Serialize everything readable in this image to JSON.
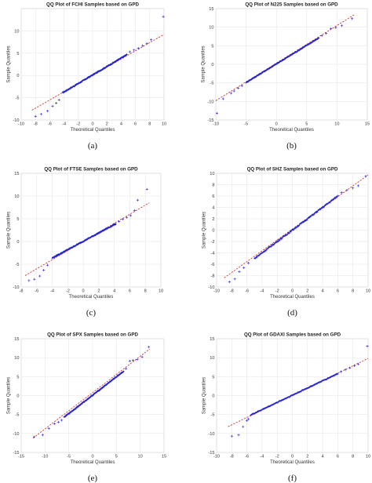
{
  "chart_data": [
    {
      "type": "scatter",
      "title": "QQ Plot of FCHI Samples based on GPD",
      "xlabel": "Theoretical Quantiles",
      "ylabel": "Sample Quantiles",
      "caption": "(a)",
      "xlim": [
        -10,
        10
      ],
      "ylim": [
        -10,
        15
      ],
      "xticks": [
        -10,
        -8,
        -6,
        -4,
        -2,
        0,
        2,
        4,
        6,
        8,
        10
      ],
      "yticks": [
        -10,
        -5,
        0,
        5,
        10
      ],
      "grid": true,
      "reference_line": {
        "x": [
          -8.5,
          10
        ],
        "y": [
          -7.8,
          9.2
        ]
      },
      "bulk": {
        "x_start": -4.2,
        "x_end": 4.8,
        "slope": 0.95,
        "intercept": 0.1
      },
      "tail_points": [
        [
          -8,
          -9.2
        ],
        [
          -7.2,
          -8.7
        ],
        [
          -6.3,
          -8
        ],
        [
          -5.6,
          -6.9
        ],
        [
          -5.1,
          -6.2
        ],
        [
          -4.7,
          -5.5
        ],
        [
          5.2,
          5.3
        ],
        [
          5.8,
          5.7
        ],
        [
          6.4,
          6.1
        ],
        [
          7,
          6.7
        ],
        [
          7.6,
          7.2
        ],
        [
          8.2,
          8
        ],
        [
          9.9,
          13.2
        ]
      ]
    },
    {
      "type": "scatter",
      "title": "QQ Plot of N225 Samples based on GPD",
      "xlabel": "Theoretical Quantiles",
      "ylabel": "Sample Quantiles",
      "caption": "(b)",
      "xlim": [
        -10,
        15
      ],
      "ylim": [
        -15,
        15
      ],
      "xticks": [
        -10,
        -5,
        0,
        5,
        10,
        15
      ],
      "yticks": [
        -15,
        -10,
        -5,
        0,
        5,
        10,
        15
      ],
      "grid": true,
      "reference_line": {
        "x": [
          -10,
          13
        ],
        "y": [
          -9.8,
          13.5
        ]
      },
      "bulk": {
        "x_start": -5,
        "x_end": 7,
        "slope": 1.0,
        "intercept": 0.1
      },
      "tail_points": [
        [
          -9.8,
          -13.2
        ],
        [
          -8.8,
          -9.3
        ],
        [
          -7.5,
          -7.8
        ],
        [
          -7,
          -7.2
        ],
        [
          -6.3,
          -6.4
        ],
        [
          -5.7,
          -5.8
        ],
        [
          7.5,
          7.7
        ],
        [
          8.2,
          8.3
        ],
        [
          9,
          9.6
        ],
        [
          9.8,
          9.9
        ],
        [
          10.8,
          10.4
        ],
        [
          12.5,
          12.3
        ]
      ]
    },
    {
      "type": "scatter",
      "title": "QQ Plot of FTSE Samples based on GPD",
      "xlabel": "Theoretical Quantiles",
      "ylabel": "Sample Quantiles",
      "caption": "(c)",
      "xlim": [
        -8,
        10
      ],
      "ylim": [
        -10,
        15
      ],
      "xticks": [
        -8,
        -6,
        -4,
        -2,
        0,
        2,
        4,
        6,
        8,
        10
      ],
      "yticks": [
        -10,
        -5,
        0,
        5,
        10,
        15
      ],
      "grid": true,
      "reference_line": {
        "x": [
          -7.5,
          8.5
        ],
        "y": [
          -7.5,
          8.5
        ]
      },
      "bulk": {
        "x_start": -4,
        "x_end": 4.2,
        "slope": 0.92,
        "intercept": 0.05
      },
      "tail_points": [
        [
          -7,
          -8.6
        ],
        [
          -6.3,
          -8.3
        ],
        [
          -5.6,
          -7.6
        ],
        [
          -5.1,
          -6.3
        ],
        [
          -4.6,
          -5.2
        ],
        [
          4.6,
          4.4
        ],
        [
          5.1,
          4.9
        ],
        [
          5.6,
          5.3
        ],
        [
          6.1,
          5.7
        ],
        [
          6.6,
          6.8
        ],
        [
          7,
          9.1
        ],
        [
          8.2,
          11.5
        ]
      ]
    },
    {
      "type": "scatter",
      "title": "QQ Plot of SHZ Samples based on GPD",
      "xlabel": "Theoretical Quantiles",
      "ylabel": "Sample Quantiles",
      "caption": "(d)",
      "xlim": [
        -10,
        10
      ],
      "ylim": [
        -10,
        10
      ],
      "xticks": [
        -10,
        -8,
        -6,
        -4,
        -2,
        0,
        2,
        4,
        6,
        8,
        10
      ],
      "yticks": [
        -10,
        -8,
        -6,
        -4,
        -2,
        0,
        2,
        4,
        6,
        8,
        10
      ],
      "grid": true,
      "reference_line": {
        "x": [
          -9,
          10
        ],
        "y": [
          -8.4,
          9.7
        ]
      },
      "bulk": {
        "x_start": -5,
        "x_end": 6,
        "slope": 1.0,
        "intercept": 0.0
      },
      "tail_points": [
        [
          -8.3,
          -9.1
        ],
        [
          -7.6,
          -8.6
        ],
        [
          -7,
          -7.3
        ],
        [
          -6.4,
          -6.6
        ],
        [
          -5.8,
          -5.8
        ],
        [
          6.5,
          6.6
        ],
        [
          7.2,
          7
        ],
        [
          8,
          7.4
        ],
        [
          8.7,
          7.8
        ],
        [
          9.7,
          9.5
        ]
      ]
    },
    {
      "type": "scatter",
      "title": "QQ Plot of SPX Samples based on GPD",
      "xlabel": "Theoretical Quantiles",
      "ylabel": "Sample Quantiles",
      "caption": "(e)",
      "xlim": [
        -15,
        15
      ],
      "ylim": [
        -15,
        15
      ],
      "xticks": [
        -15,
        -10,
        -5,
        0,
        5,
        10,
        15
      ],
      "yticks": [
        -15,
        -10,
        -5,
        0,
        5,
        10,
        15
      ],
      "grid": true,
      "reference_line": {
        "x": [
          -12.5,
          12
        ],
        "y": [
          -11.2,
          12.3
        ]
      },
      "bulk": {
        "x_start": -6,
        "x_end": 6.5,
        "slope": 0.97,
        "intercept": 0.1
      },
      "tail_points": [
        [
          -12.3,
          -10.9
        ],
        [
          -10.5,
          -10.4
        ],
        [
          -9.2,
          -8.7
        ],
        [
          -8,
          -7.4
        ],
        [
          -7.2,
          -7
        ],
        [
          -6.5,
          -6.5
        ],
        [
          7,
          7.1
        ],
        [
          7.8,
          9.1
        ],
        [
          8.5,
          9.3
        ],
        [
          9.4,
          9.5
        ],
        [
          10.4,
          10.2
        ],
        [
          11.8,
          12.8
        ]
      ]
    },
    {
      "type": "scatter",
      "title": "QQ Plot of GDAXI Samples based on GPD",
      "xlabel": "Theoretical Quantiles",
      "ylabel": "Sample Quantiles",
      "caption": "(f)",
      "xlim": [
        -10,
        10
      ],
      "ylim": [
        -15,
        15
      ],
      "xticks": [
        -10,
        -8,
        -6,
        -4,
        -2,
        0,
        2,
        4,
        6,
        8,
        10
      ],
      "yticks": [
        -15,
        -10,
        -5,
        0,
        5,
        10,
        15
      ],
      "grid": true,
      "reference_line": {
        "x": [
          -8.5,
          10
        ],
        "y": [
          -8.2,
          9.8
        ]
      },
      "bulk": {
        "x_start": -5.5,
        "x_end": 6,
        "slope": 0.95,
        "intercept": 0.1
      },
      "tail_points": [
        [
          -8,
          -10.7
        ],
        [
          -7.1,
          -10.4
        ],
        [
          -6.5,
          -8.2
        ],
        [
          -6,
          -6.6
        ],
        [
          -5.8,
          -6.2
        ],
        [
          6.4,
          6.3
        ],
        [
          7,
          6.8
        ],
        [
          7.6,
          7.3
        ],
        [
          8.2,
          7.9
        ],
        [
          8.7,
          8.3
        ],
        [
          9.9,
          13
        ]
      ]
    }
  ]
}
